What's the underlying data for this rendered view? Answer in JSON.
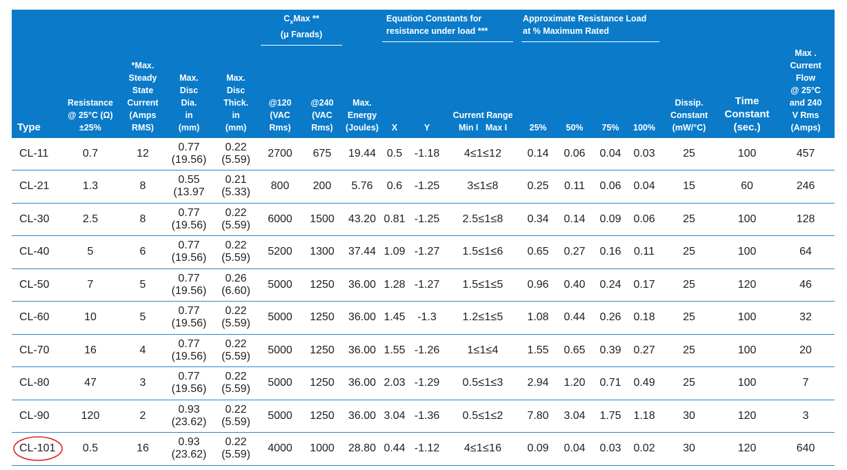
{
  "headers": {
    "type": "Type",
    "resistance": [
      "Resistance",
      "@ 25°C (Ω)",
      "±25%"
    ],
    "steady": [
      "*Max.",
      "Steady",
      "State",
      "Current",
      "(Amps",
      "RMS)"
    ],
    "disc_dia": [
      "Max.",
      "Disc",
      "Dia.",
      "in",
      "(mm)"
    ],
    "disc_thick": [
      "Max.",
      "Disc",
      "Thick.",
      "in",
      "(mm)"
    ],
    "cxmax_title": "C",
    "cxmax_sub": "x",
    "cxmax_rest": "Max **",
    "cxmax_unit": "(μ Farads)",
    "c120": [
      "@120",
      "(VAC",
      "Rms)"
    ],
    "c240": [
      "@240",
      "(VAC",
      "Rms)"
    ],
    "energy": [
      "Max.",
      "Energy",
      "(Joules)"
    ],
    "eq_title": [
      "Equation Constants for",
      "resistance under load ***"
    ],
    "x": "X",
    "y": "Y",
    "current_range": "Current Range",
    "min_max": "Min I   Max I",
    "load_title": [
      "Approximate Resistance Load",
      "at % Maximum Rated"
    ],
    "p25": "25%",
    "p50": "50%",
    "p75": "75%",
    "p100": "100%",
    "dissip": [
      "Dissip.",
      "Constant",
      "(mW/°C)"
    ],
    "time": [
      "Time",
      "Constant",
      "(sec.)"
    ],
    "flow": [
      "Max .",
      "Current",
      "Flow",
      "@ 25°C",
      "and 240",
      "V Rms",
      "(Amps)"
    ]
  },
  "rows": [
    {
      "type": "CL-11",
      "res": "0.7",
      "steady": "12",
      "dia": "0.77",
      "dia_mm": "(19.56)",
      "thick": "0.22",
      "thick_mm": "(5.59)",
      "c120": "2700",
      "c240": "675",
      "energy": "19.44",
      "x": "0.5",
      "y": "-1.18",
      "range": "4≤1≤12",
      "p25": "0.14",
      "p50": "0.06",
      "p75": "0.04",
      "p100": "0.03",
      "dissip": "25",
      "time": "100",
      "flow": "457"
    },
    {
      "type": "CL-21",
      "res": "1.3",
      "steady": "8",
      "dia": "0.55",
      "dia_mm": "(13.97",
      "thick": "0.21",
      "thick_mm": "(5.33)",
      "c120": "800",
      "c240": "200",
      "energy": "5.76",
      "x": "0.6",
      "y": "-1.25",
      "range": "3≤1≤8",
      "p25": "0.25",
      "p50": "0.11",
      "p75": "0.06",
      "p100": "0.04",
      "dissip": "15",
      "time": "60",
      "flow": "246"
    },
    {
      "type": "CL-30",
      "res": "2.5",
      "steady": "8",
      "dia": "0.77",
      "dia_mm": "(19.56)",
      "thick": "0.22",
      "thick_mm": "(5.59)",
      "c120": "6000",
      "c240": "1500",
      "energy": "43.20",
      "x": "0.81",
      "y": "-1.25",
      "range": "2.5≤1≤8",
      "p25": "0.34",
      "p50": "0.14",
      "p75": "0.09",
      "p100": "0.06",
      "dissip": "25",
      "time": "100",
      "flow": "128"
    },
    {
      "type": "CL-40",
      "res": "5",
      "steady": "6",
      "dia": "0.77",
      "dia_mm": "(19.56)",
      "thick": "0.22",
      "thick_mm": "(5.59)",
      "c120": "5200",
      "c240": "1300",
      "energy": "37.44",
      "x": "1.09",
      "y": "-1.27",
      "range": "1.5≤1≤6",
      "p25": "0.65",
      "p50": "0.27",
      "p75": "0.16",
      "p100": "0.11",
      "dissip": "25",
      "time": "100",
      "flow": "64"
    },
    {
      "type": "CL-50",
      "res": "7",
      "steady": "5",
      "dia": "0.77",
      "dia_mm": "(19.56)",
      "thick": "0.26",
      "thick_mm": "(6.60)",
      "c120": "5000",
      "c240": "1250",
      "energy": "36.00",
      "x": "1.28",
      "y": "-1.27",
      "range": "1.5≤1≤5",
      "p25": "0.96",
      "p50": "0.40",
      "p75": "0.24",
      "p100": "0.17",
      "dissip": "25",
      "time": "120",
      "flow": "46"
    },
    {
      "type": "CL-60",
      "res": "10",
      "steady": "5",
      "dia": "0.77",
      "dia_mm": "(19.56)",
      "thick": "0.22",
      "thick_mm": "(5.59)",
      "c120": "5000",
      "c240": "1250",
      "energy": "36.00",
      "x": "1.45",
      "y": "-1.3",
      "range": "1.2≤1≤5",
      "p25": "1.08",
      "p50": "0.44",
      "p75": "0.26",
      "p100": "0.18",
      "dissip": "25",
      "time": "100",
      "flow": "32"
    },
    {
      "type": "CL-70",
      "res": "16",
      "steady": "4",
      "dia": "0.77",
      "dia_mm": "(19.56)",
      "thick": "0.22",
      "thick_mm": "(5.59)",
      "c120": "5000",
      "c240": "1250",
      "energy": "36.00",
      "x": "1.55",
      "y": "-1.26",
      "range": "1≤1≤4",
      "p25": "1.55",
      "p50": "0.65",
      "p75": "0.39",
      "p100": "0.27",
      "dissip": "25",
      "time": "100",
      "flow": "20"
    },
    {
      "type": "CL-80",
      "res": "47",
      "steady": "3",
      "dia": "0.77",
      "dia_mm": "(19.56)",
      "thick": "0.22",
      "thick_mm": "(5.59)",
      "c120": "5000",
      "c240": "1250",
      "energy": "36.00",
      "x": "2.03",
      "y": "-1.29",
      "range": "0.5≤1≤3",
      "p25": "2.94",
      "p50": "1.20",
      "p75": "0.71",
      "p100": "0.49",
      "dissip": "25",
      "time": "100",
      "flow": "7"
    },
    {
      "type": "CL-90",
      "res": "120",
      "steady": "2",
      "dia": "0.93",
      "dia_mm": "(23.62)",
      "thick": "0.22",
      "thick_mm": "(5.59)",
      "c120": "5000",
      "c240": "1250",
      "energy": "36.00",
      "x": "3.04",
      "y": "-1.36",
      "range": "0.5≤1≤2",
      "p25": "7.80",
      "p50": "3.04",
      "p75": "1.75",
      "p100": "1.18",
      "dissip": "30",
      "time": "120",
      "flow": "3"
    },
    {
      "type": "CL-101",
      "res": "0.5",
      "steady": "16",
      "dia": "0.93",
      "dia_mm": "(23.62)",
      "thick": "0.22",
      "thick_mm": "(5.59)",
      "c120": "4000",
      "c240": "1000",
      "energy": "28.80",
      "x": "0.44",
      "y": "-1.12",
      "range": "4≤1≤16",
      "p25": "0.09",
      "p50": "0.04",
      "p75": "0.03",
      "p100": "0.02",
      "dissip": "30",
      "time": "120",
      "flow": "640"
    }
  ],
  "colors": {
    "header_bg": "#0a7ac9",
    "rule": "#2a86cc",
    "circle": "#e02020"
  },
  "annotation": {
    "circled_row": "CL-101",
    "icon": "red-circle-annotation"
  }
}
